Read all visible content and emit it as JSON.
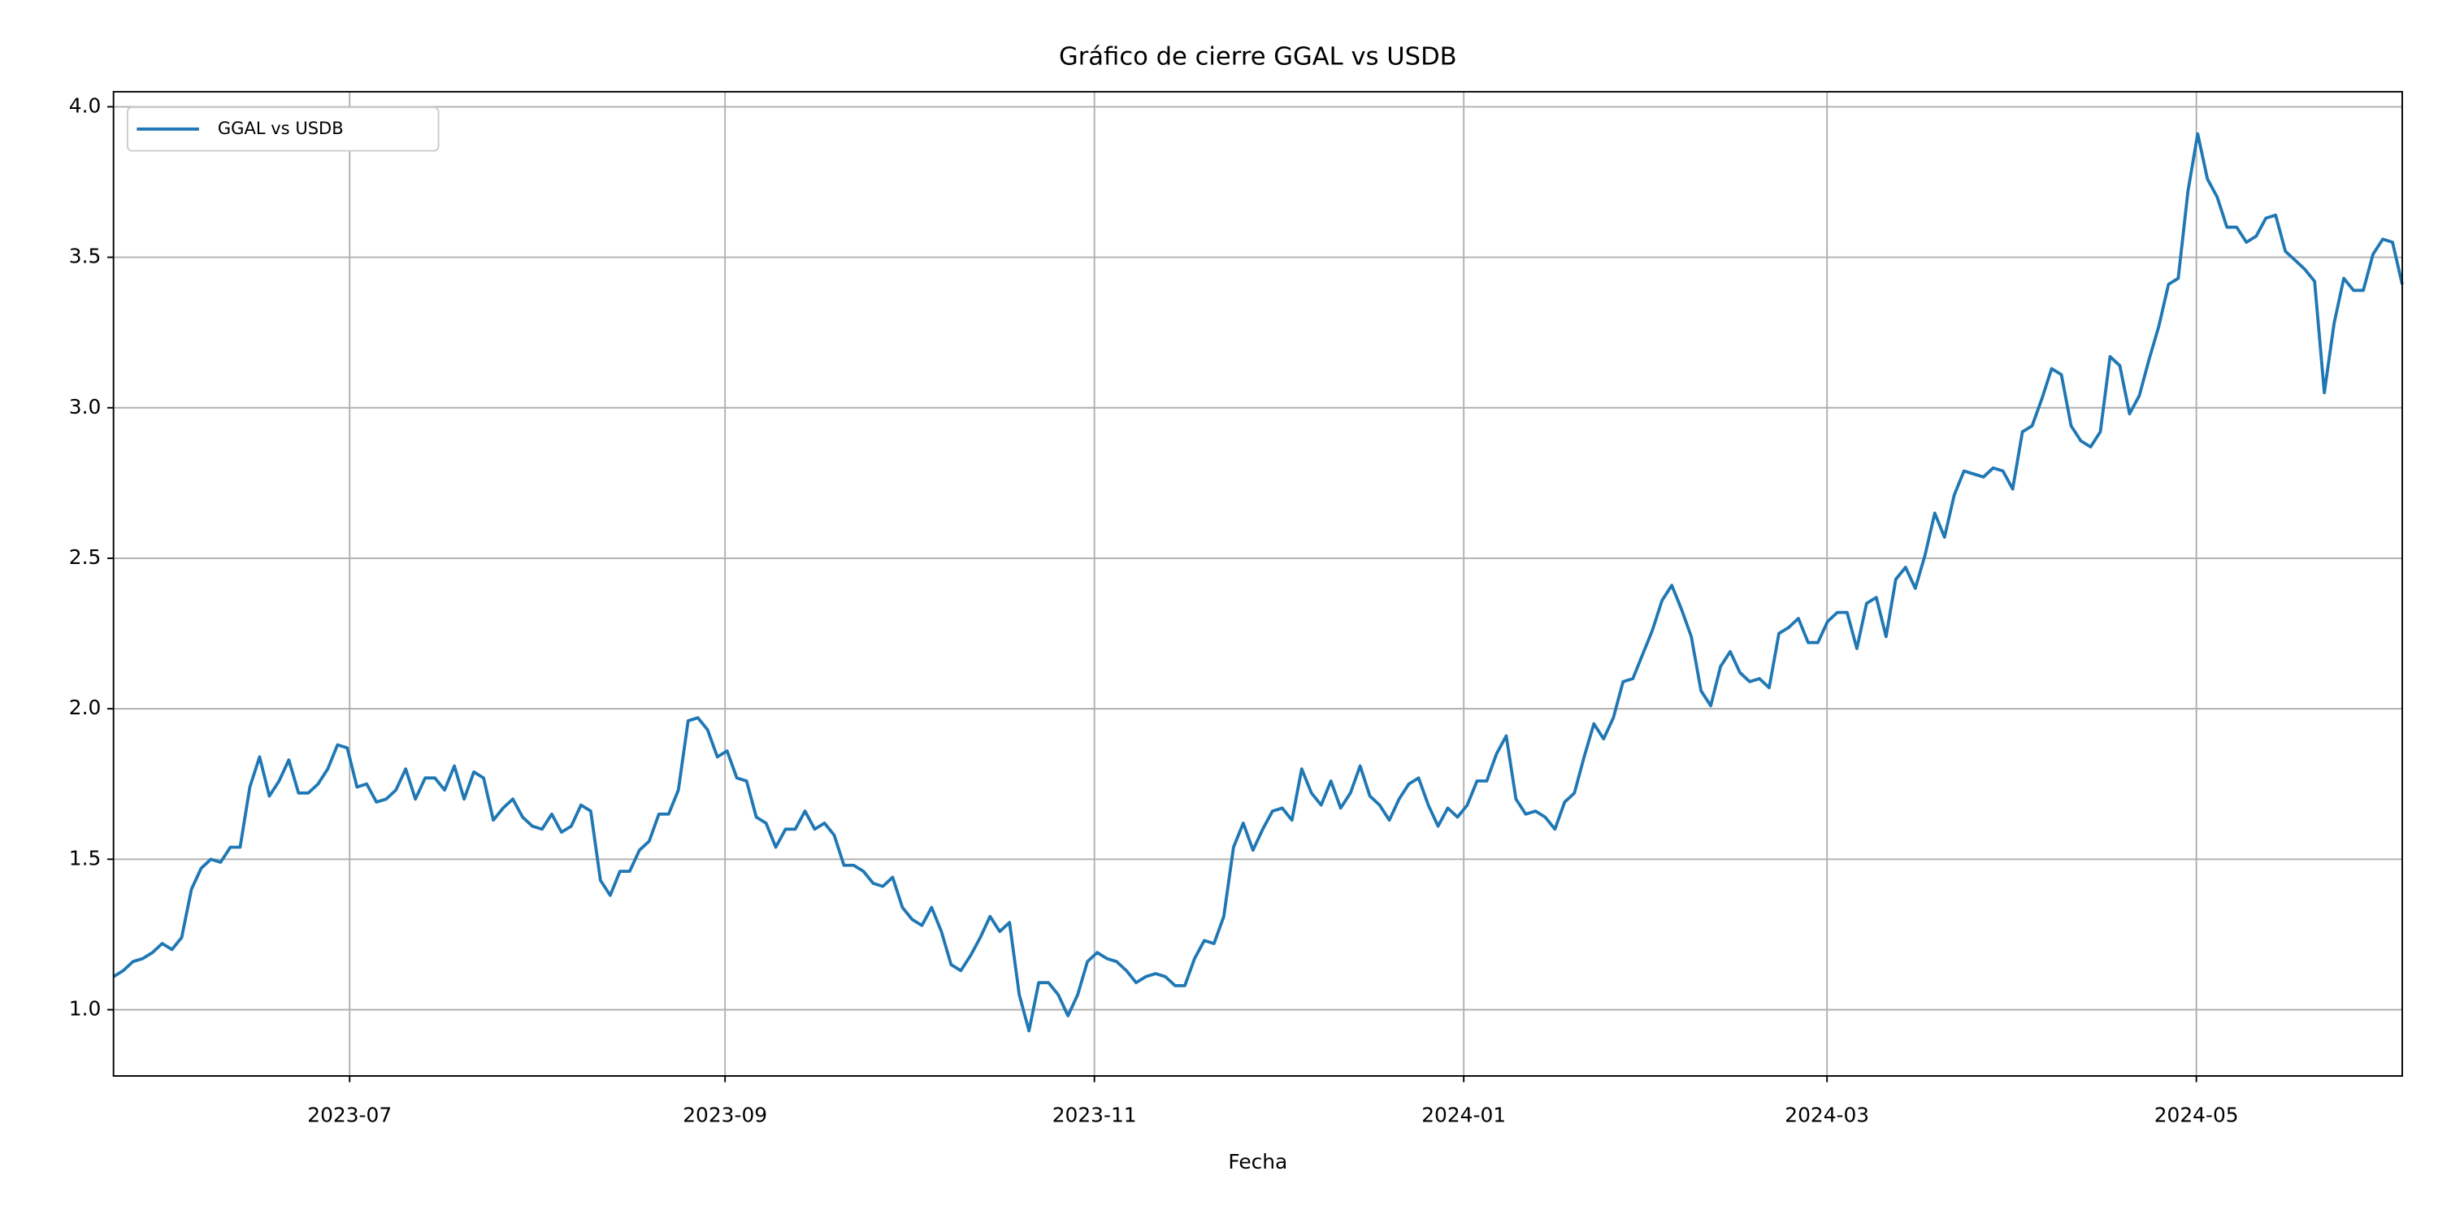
{
  "chart_data": {
    "type": "line",
    "title": "Gráfico de cierre GGAL vs USDB",
    "xlabel": "Fecha",
    "xlim": [
      "2023-05-23",
      "2024-06-04"
    ],
    "xticks": [
      "2023-07",
      "2023-09",
      "2023-11",
      "2024-01",
      "2024-03",
      "2024-05"
    ],
    "ylim": [
      0.78,
      4.05
    ],
    "yticks": [
      {
        "value": 1,
        "label": "1.0"
      },
      {
        "value": 1.5,
        "label": "1.5"
      },
      {
        "value": 2,
        "label": "2.0"
      },
      {
        "value": 2.5,
        "label": "2.5"
      },
      {
        "value": 3,
        "label": "3.0"
      },
      {
        "value": 3.5,
        "label": "3.5"
      },
      {
        "value": 4,
        "label": "4.0"
      }
    ],
    "grid": true,
    "legend": "upper left",
    "series": [
      {
        "name": "GGAL vs USDB",
        "color": "#1f77b4",
        "values": [
          1.11,
          1.13,
          1.16,
          1.17,
          1.19,
          1.22,
          1.2,
          1.24,
          1.4,
          1.47,
          1.5,
          1.49,
          1.54,
          1.54,
          1.74,
          1.84,
          1.71,
          1.76,
          1.83,
          1.72,
          1.72,
          1.75,
          1.8,
          1.88,
          1.87,
          1.74,
          1.75,
          1.69,
          1.7,
          1.73,
          1.8,
          1.7,
          1.77,
          1.77,
          1.73,
          1.81,
          1.7,
          1.79,
          1.77,
          1.63,
          1.67,
          1.7,
          1.64,
          1.61,
          1.6,
          1.65,
          1.59,
          1.61,
          1.68,
          1.66,
          1.43,
          1.38,
          1.46,
          1.46,
          1.53,
          1.56,
          1.65,
          1.65,
          1.73,
          1.96,
          1.97,
          1.93,
          1.84,
          1.86,
          1.77,
          1.76,
          1.64,
          1.62,
          1.54,
          1.6,
          1.6,
          1.66,
          1.6,
          1.62,
          1.58,
          1.48,
          1.48,
          1.46,
          1.42,
          1.41,
          1.44,
          1.34,
          1.3,
          1.28,
          1.34,
          1.26,
          1.15,
          1.13,
          1.18,
          1.24,
          1.31,
          1.26,
          1.29,
          1.05,
          0.93,
          1.09,
          1.09,
          1.05,
          0.98,
          1.05,
          1.16,
          1.19,
          1.17,
          1.16,
          1.13,
          1.09,
          1.11,
          1.12,
          1.11,
          1.08,
          1.08,
          1.17,
          1.23,
          1.22,
          1.31,
          1.54,
          1.62,
          1.53,
          1.6,
          1.66,
          1.67,
          1.63,
          1.8,
          1.72,
          1.68,
          1.76,
          1.67,
          1.72,
          1.81,
          1.71,
          1.68,
          1.63,
          1.7,
          1.75,
          1.77,
          1.68,
          1.61,
          1.67,
          1.64,
          1.68,
          1.76,
          1.76,
          1.85,
          1.91,
          1.7,
          1.65,
          1.66,
          1.64,
          1.6,
          1.69,
          1.72,
          1.84,
          1.95,
          1.9,
          1.97,
          2.09,
          2.1,
          2.18,
          2.26,
          2.36,
          2.41,
          2.33,
          2.24,
          2.06,
          2.01,
          2.14,
          2.19,
          2.12,
          2.09,
          2.1,
          2.07,
          2.25,
          2.27,
          2.3,
          2.22,
          2.22,
          2.29,
          2.32,
          2.32,
          2.2,
          2.35,
          2.37,
          2.24,
          2.43,
          2.47,
          2.4,
          2.51,
          2.65,
          2.57,
          2.71,
          2.79,
          2.78,
          2.77,
          2.8,
          2.79,
          2.73,
          2.92,
          2.94,
          3.03,
          3.13,
          3.11,
          2.94,
          2.89,
          2.87,
          2.92,
          3.17,
          3.14,
          2.98,
          3.04,
          3.16,
          3.27,
          3.41,
          3.43,
          3.72,
          3.91,
          3.76,
          3.7,
          3.6,
          3.6,
          3.55,
          3.57,
          3.63,
          3.64,
          3.52,
          3.49,
          3.46,
          3.42,
          3.05,
          3.28,
          3.43,
          3.39,
          3.39,
          3.51,
          3.56,
          3.55,
          3.41
        ]
      }
    ]
  }
}
